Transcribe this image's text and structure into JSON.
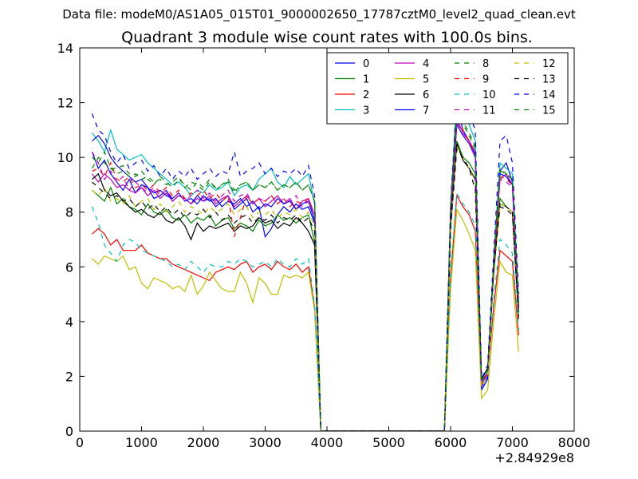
{
  "chart_data": {
    "type": "line",
    "suptitle": "Data file: modeM0/AS1A05_015T01_9000002650_17787cztM0_level2_quad_clean.evt",
    "title": "Quadrant 3 module wise count rates with 100.0s bins.",
    "x_offset_label": "+2.84929e8",
    "xlim": [
      0,
      8000
    ],
    "ylim": [
      0,
      14
    ],
    "xticks": [
      "0",
      "1000",
      "2000",
      "3000",
      "4000",
      "5000",
      "6000",
      "7000",
      "8000"
    ],
    "yticks": [
      "0",
      "2",
      "4",
      "6",
      "8",
      "10",
      "12",
      "14"
    ],
    "legend_position": "top-right",
    "x": [
      200,
      300,
      400,
      500,
      600,
      700,
      800,
      900,
      1000,
      1100,
      1200,
      1300,
      1400,
      1500,
      1600,
      1700,
      1800,
      1900,
      2000,
      2100,
      2200,
      2300,
      2400,
      2500,
      2600,
      2700,
      2800,
      2900,
      3000,
      3100,
      3200,
      3300,
      3400,
      3500,
      3600,
      3700,
      3800,
      3900,
      4000,
      4100,
      4200,
      4300,
      4400,
      4500,
      4600,
      4700,
      4800,
      4900,
      5000,
      5100,
      5200,
      5300,
      5400,
      5500,
      5600,
      5700,
      5800,
      5900,
      6000,
      6100,
      6200,
      6300,
      6400,
      6500,
      6600,
      6700,
      6800,
      6900,
      7000,
      7100
    ],
    "series": [
      {
        "name": "0",
        "color": "#0000ff",
        "dash": "solid",
        "values": [
          10.2,
          9.6,
          9.9,
          9.4,
          9.1,
          8.8,
          9.2,
          8.7,
          9.0,
          8.9,
          8.5,
          8.6,
          8.8,
          8.4,
          8.6,
          8.5,
          8.3,
          8.6,
          8.4,
          8.5,
          8.2,
          8.4,
          8.6,
          8.1,
          8.3,
          8.5,
          8.0,
          8.2,
          7.1,
          7.4,
          7.9,
          8.2,
          8.0,
          8.3,
          8.1,
          8.2,
          7.6,
          0,
          0,
          0,
          0,
          0,
          0,
          0,
          0,
          0,
          0,
          0,
          0,
          0,
          0,
          0,
          0,
          0,
          0,
          0,
          0,
          0,
          7.8,
          11.9,
          11.0,
          10.6,
          10.1,
          1.5,
          1.9,
          6.0,
          9.5,
          9.8,
          9.1,
          4.6
        ]
      },
      {
        "name": "1",
        "color": "#008000",
        "dash": "solid",
        "values": [
          8.8,
          8.6,
          8.4,
          8.9,
          8.3,
          8.5,
          8.2,
          8.1,
          7.9,
          8.3,
          8.0,
          7.9,
          8.1,
          7.8,
          7.7,
          7.9,
          7.6,
          7.8,
          7.7,
          7.9,
          7.5,
          7.7,
          7.8,
          7.4,
          7.6,
          7.5,
          7.3,
          7.7,
          7.5,
          7.6,
          7.9,
          7.7,
          7.8,
          7.6,
          7.8,
          7.9,
          6.9,
          0,
          0,
          0,
          0,
          0,
          0,
          0,
          0,
          0,
          0,
          0,
          0,
          0,
          0,
          0,
          0,
          0,
          0,
          0,
          0,
          0,
          7.4,
          10.6,
          10.0,
          9.8,
          9.4,
          1.9,
          2.3,
          6.2,
          8.5,
          8.2,
          8.0,
          4.3
        ]
      },
      {
        "name": "2",
        "color": "#ff0000",
        "dash": "solid",
        "values": [
          7.2,
          7.4,
          7.2,
          6.8,
          7.0,
          6.6,
          6.6,
          6.6,
          6.8,
          6.5,
          6.4,
          6.3,
          6.3,
          6.1,
          6.0,
          5.9,
          5.8,
          5.7,
          5.6,
          5.5,
          5.8,
          5.9,
          6.0,
          5.9,
          6.1,
          6.2,
          5.8,
          6.0,
          6.1,
          5.9,
          6.2,
          6.0,
          5.9,
          6.1,
          5.8,
          6.0,
          4.5,
          0,
          0,
          0,
          0,
          0,
          0,
          0,
          0,
          0,
          0,
          0,
          0,
          0,
          0,
          0,
          0,
          0,
          0,
          0,
          0,
          0,
          5.6,
          8.6,
          8.2,
          7.9,
          7.3,
          1.8,
          2.1,
          4.6,
          6.6,
          6.4,
          6.2,
          3.5
        ]
      },
      {
        "name": "3",
        "color": "#00bfbf",
        "dash": "solid",
        "values": [
          10.9,
          10.6,
          10.2,
          11.0,
          10.3,
          10.1,
          9.9,
          10.0,
          10.1,
          9.8,
          9.6,
          9.4,
          9.2,
          9.0,
          9.1,
          8.9,
          8.6,
          8.8,
          8.7,
          9.0,
          8.8,
          8.9,
          9.1,
          8.6,
          8.9,
          9.0,
          8.8,
          9.2,
          9.4,
          9.6,
          9.1,
          8.9,
          9.3,
          9.0,
          9.2,
          9.4,
          8.3,
          0,
          0,
          0,
          0,
          0,
          0,
          0,
          0,
          0,
          0,
          0,
          0,
          0,
          0,
          0,
          0,
          0,
          0,
          0,
          0,
          0,
          8.1,
          12.3,
          11.6,
          11.2,
          10.6,
          1.7,
          2.1,
          6.4,
          9.8,
          9.6,
          9.4,
          4.8
        ]
      },
      {
        "name": "4",
        "color": "#bf00bf",
        "dash": "solid",
        "values": [
          9.4,
          9.1,
          9.4,
          9.2,
          8.9,
          9.0,
          8.8,
          8.7,
          8.9,
          8.6,
          8.8,
          8.5,
          8.7,
          8.4,
          8.6,
          8.5,
          8.3,
          8.5,
          8.4,
          8.6,
          8.3,
          8.5,
          8.6,
          8.2,
          8.4,
          8.6,
          8.3,
          8.5,
          8.2,
          8.4,
          8.6,
          8.3,
          8.5,
          8.1,
          8.4,
          8.5,
          7.9,
          0,
          0,
          0,
          0,
          0,
          0,
          0,
          0,
          0,
          0,
          0,
          0,
          0,
          0,
          0,
          0,
          0,
          0,
          0,
          0,
          0,
          7.9,
          11.4,
          10.9,
          10.6,
          10.2,
          1.8,
          2.2,
          6.1,
          9.2,
          9.4,
          9.0,
          4.5
        ]
      },
      {
        "name": "5",
        "color": "#bfbf00",
        "dash": "solid",
        "values": [
          6.3,
          6.1,
          6.4,
          6.3,
          6.2,
          6.4,
          5.9,
          6.0,
          5.4,
          5.2,
          5.6,
          5.5,
          5.4,
          5.2,
          5.3,
          5.1,
          5.7,
          5.0,
          5.3,
          5.8,
          5.5,
          5.2,
          5.1,
          5.1,
          5.8,
          5.4,
          4.7,
          5.6,
          5.4,
          5.0,
          5.0,
          5.7,
          5.6,
          5.7,
          5.6,
          5.8,
          4.4,
          0,
          0,
          0,
          0,
          0,
          0,
          0,
          0,
          0,
          0,
          0,
          0,
          0,
          0,
          0,
          0,
          0,
          0,
          0,
          0,
          0,
          5.2,
          8.1,
          7.7,
          7.2,
          6.6,
          1.2,
          1.5,
          4.1,
          6.2,
          5.8,
          5.7,
          2.9
        ]
      },
      {
        "name": "6",
        "color": "#000000",
        "dash": "solid",
        "values": [
          9.2,
          9.4,
          8.8,
          8.6,
          8.7,
          8.4,
          8.2,
          8.0,
          8.1,
          7.9,
          7.8,
          8.0,
          7.7,
          7.6,
          7.8,
          7.5,
          7.0,
          7.6,
          7.3,
          7.5,
          7.4,
          7.5,
          7.6,
          7.3,
          7.5,
          7.4,
          7.5,
          7.8,
          7.6,
          7.7,
          7.4,
          7.6,
          7.5,
          7.8,
          7.6,
          7.3,
          6.8,
          0,
          0,
          0,
          0,
          0,
          0,
          0,
          0,
          0,
          0,
          0,
          0,
          0,
          0,
          0,
          0,
          0,
          0,
          0,
          0,
          0,
          7.4,
          10.5,
          9.9,
          9.6,
          9.2,
          1.9,
          2.3,
          5.9,
          8.3,
          8.2,
          8.0,
          4.1
        ]
      },
      {
        "name": "7",
        "color": "#0000ff",
        "dash": "solid",
        "values": [
          10.6,
          10.8,
          10.5,
          10.0,
          9.7,
          9.5,
          9.3,
          9.1,
          9.2,
          8.9,
          8.7,
          8.8,
          8.6,
          8.5,
          8.7,
          8.4,
          8.5,
          8.3,
          8.6,
          8.4,
          8.5,
          8.2,
          8.4,
          8.3,
          8.5,
          8.2,
          8.4,
          8.1,
          8.3,
          8.2,
          8.5,
          8.3,
          8.4,
          8.1,
          8.3,
          8.4,
          7.7,
          0,
          0,
          0,
          0,
          0,
          0,
          0,
          0,
          0,
          0,
          0,
          0,
          0,
          0,
          0,
          0,
          0,
          0,
          0,
          0,
          0,
          7.8,
          11.2,
          10.8,
          10.5,
          10.0,
          1.6,
          2.0,
          6.0,
          9.4,
          9.3,
          9.0,
          4.6
        ]
      },
      {
        "name": "8",
        "color": "#008000",
        "dash": "dashed",
        "values": [
          10.0,
          9.8,
          10.2,
          9.6,
          9.6,
          9.7,
          9.4,
          9.3,
          9.5,
          9.2,
          9.0,
          9.3,
          9.1,
          8.9,
          9.2,
          9.0,
          8.8,
          9.1,
          8.9,
          9.2,
          8.8,
          9.0,
          9.1,
          8.7,
          9.0,
          9.1,
          8.8,
          9.0,
          8.9,
          9.1,
          8.8,
          9.0,
          8.9,
          9.1,
          8.8,
          9.0,
          8.4,
          0,
          0,
          0,
          0,
          0,
          0,
          0,
          0,
          0,
          0,
          0,
          0,
          0,
          0,
          0,
          0,
          0,
          0,
          0,
          0,
          0,
          8.2,
          11.8,
          11.3,
          10.9,
          10.4,
          1.8,
          2.2,
          6.3,
          9.6,
          9.4,
          9.2,
          4.7
        ]
      },
      {
        "name": "9",
        "color": "#ff0000",
        "dash": "dashed",
        "values": [
          9.5,
          9.6,
          9.3,
          9.8,
          9.2,
          9.1,
          9.3,
          8.9,
          9.0,
          8.8,
          9.0,
          8.7,
          8.9,
          8.6,
          8.8,
          8.5,
          8.7,
          8.6,
          8.8,
          8.5,
          8.7,
          8.4,
          8.6,
          7.1,
          7.8,
          8.6,
          8.3,
          8.5,
          8.4,
          8.6,
          8.3,
          8.5,
          8.2,
          8.4,
          8.3,
          8.5,
          7.9,
          0,
          0,
          0,
          0,
          0,
          0,
          0,
          0,
          0,
          0,
          0,
          0,
          0,
          0,
          0,
          0,
          0,
          0,
          0,
          0,
          0,
          7.9,
          11.5,
          11.0,
          10.6,
          10.1,
          1.7,
          2.1,
          6.2,
          9.3,
          9.2,
          9.0,
          4.5
        ]
      },
      {
        "name": "10",
        "color": "#00bfbf",
        "dash": "dashed",
        "values": [
          8.2,
          7.6,
          6.8,
          6.5,
          6.2,
          6.8,
          7.0,
          6.9,
          6.6,
          6.5,
          6.4,
          6.3,
          6.2,
          6.0,
          6.1,
          5.9,
          6.2,
          6.0,
          5.8,
          6.1,
          6.0,
          6.0,
          6.2,
          6.1,
          6.3,
          6.2,
          6.0,
          6.1,
          6.2,
          6.0,
          6.3,
          6.1,
          6.0,
          6.3,
          6.1,
          6.3,
          4.6,
          0,
          0,
          0,
          0,
          0,
          0,
          0,
          0,
          0,
          0,
          0,
          0,
          0,
          0,
          0,
          0,
          0,
          0,
          0,
          0,
          0,
          5.8,
          8.7,
          8.3,
          8.0,
          7.5,
          1.8,
          2.2,
          4.8,
          7.0,
          6.8,
          6.5,
          3.7
        ]
      },
      {
        "name": "11",
        "color": "#bf00bf",
        "dash": "dashed",
        "values": [
          10.2,
          9.8,
          9.2,
          9.5,
          9.1,
          9.3,
          8.8,
          9.1,
          8.9,
          8.7,
          8.9,
          8.6,
          8.8,
          8.5,
          8.7,
          8.4,
          8.6,
          8.8,
          8.5,
          8.7,
          8.4,
          8.6,
          8.8,
          8.4,
          8.6,
          8.7,
          8.3,
          8.5,
          8.4,
          8.6,
          8.3,
          8.5,
          8.4,
          8.6,
          8.2,
          8.4,
          7.9,
          0,
          0,
          0,
          0,
          0,
          0,
          0,
          0,
          0,
          0,
          0,
          0,
          0,
          0,
          0,
          0,
          0,
          0,
          0,
          0,
          0,
          7.9,
          11.3,
          10.9,
          10.5,
          10.0,
          1.7,
          2.1,
          6.1,
          9.2,
          9.1,
          8.9,
          4.5
        ]
      },
      {
        "name": "12",
        "color": "#bfbf00",
        "dash": "dashed",
        "values": [
          8.8,
          8.6,
          8.9,
          8.4,
          8.5,
          8.3,
          8.6,
          8.2,
          8.4,
          8.5,
          8.1,
          8.3,
          8.0,
          8.2,
          8.4,
          8.0,
          8.2,
          8.1,
          7.9,
          8.2,
          8.0,
          8.1,
          8.3,
          7.9,
          8.1,
          8.2,
          7.8,
          8.0,
          7.9,
          8.1,
          7.8,
          8.0,
          7.9,
          8.1,
          7.8,
          8.0,
          7.5,
          0,
          0,
          0,
          0,
          0,
          0,
          0,
          0,
          0,
          0,
          0,
          0,
          0,
          0,
          0,
          0,
          0,
          0,
          0,
          0,
          0,
          7.3,
          10.4,
          10.0,
          9.6,
          9.1,
          1.6,
          2.0,
          5.6,
          8.3,
          8.2,
          8.0,
          4.2
        ]
      },
      {
        "name": "13",
        "color": "#000000",
        "dash": "dashed",
        "values": [
          9.1,
          8.9,
          8.7,
          8.5,
          8.6,
          8.4,
          8.5,
          8.2,
          8.4,
          8.1,
          8.3,
          8.0,
          8.2,
          7.9,
          8.1,
          7.8,
          8.0,
          7.9,
          8.1,
          7.8,
          8.0,
          7.7,
          7.9,
          7.6,
          7.8,
          7.9,
          7.6,
          7.8,
          7.7,
          7.9,
          7.6,
          7.8,
          7.7,
          7.9,
          7.6,
          7.8,
          7.3,
          0,
          0,
          0,
          0,
          0,
          0,
          0,
          0,
          0,
          0,
          0,
          0,
          0,
          0,
          0,
          0,
          0,
          0,
          0,
          0,
          0,
          7.4,
          10.3,
          10.0,
          9.6,
          8.8,
          1.9,
          2.3,
          6.0,
          8.2,
          8.1,
          7.9,
          4.2
        ]
      },
      {
        "name": "14",
        "color": "#0000ff",
        "dash": "dashed",
        "values": [
          11.6,
          11.0,
          10.8,
          10.2,
          9.8,
          10.1,
          9.6,
          9.8,
          9.9,
          9.5,
          9.7,
          9.3,
          9.6,
          9.2,
          9.5,
          9.3,
          9.6,
          9.2,
          9.4,
          9.6,
          9.3,
          9.5,
          9.4,
          10.2,
          9.3,
          9.5,
          9.6,
          9.8,
          9.4,
          9.6,
          9.3,
          9.5,
          9.4,
          9.6,
          9.3,
          9.7,
          8.6,
          0,
          0,
          0,
          0,
          0,
          0,
          0,
          0,
          0,
          0,
          0,
          0,
          0,
          0,
          0,
          0,
          0,
          0,
          0,
          0,
          0,
          8.3,
          12.2,
          12.4,
          11.6,
          11.0,
          1.9,
          2.4,
          6.6,
          10.6,
          10.8,
          9.8,
          5.0
        ]
      },
      {
        "name": "15",
        "color": "#008000",
        "dash": "dashed",
        "values": [
          9.6,
          10.0,
          9.8,
          9.6,
          9.4,
          9.5,
          9.3,
          9.4,
          9.2,
          9.3,
          9.1,
          9.2,
          9.0,
          9.1,
          9.3,
          8.9,
          9.1,
          9.0,
          8.8,
          9.1,
          8.9,
          9.0,
          9.2,
          8.8,
          9.0,
          9.1,
          8.8,
          9.0,
          8.9,
          9.1,
          8.8,
          9.0,
          8.9,
          9.1,
          8.8,
          9.0,
          8.4,
          0,
          0,
          0,
          0,
          0,
          0,
          0,
          0,
          0,
          0,
          0,
          0,
          0,
          0,
          0,
          0,
          0,
          0,
          0,
          0,
          0,
          8.1,
          11.7,
          11.2,
          10.8,
          10.3,
          1.8,
          2.2,
          6.2,
          9.5,
          9.4,
          9.2,
          4.6
        ]
      }
    ]
  }
}
